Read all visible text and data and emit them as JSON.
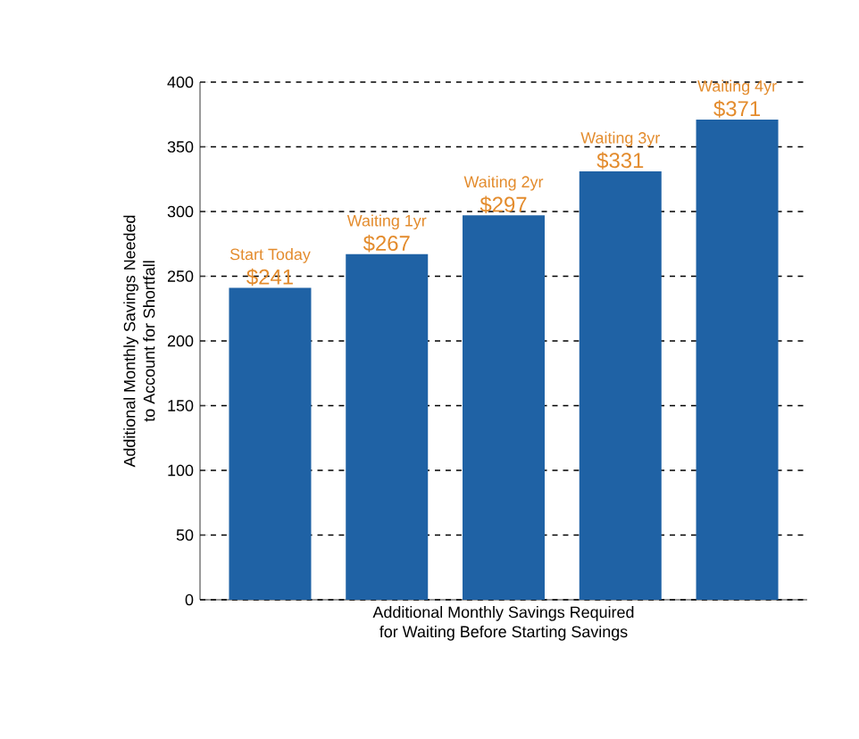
{
  "chart_data": {
    "type": "bar",
    "xlabel": "Additional Monthly Savings Required\nfor Waiting Before Starting Savings",
    "ylabel": "Additional Monthly Savings Needed\nto Account for Shortfall",
    "categories": [
      "Start Today",
      "Waiting 1yr",
      "Waiting 2yr",
      "Waiting 3yr",
      "Waiting 4yr"
    ],
    "values": [
      241,
      267,
      297,
      331,
      371
    ],
    "value_labels": [
      "$241",
      "$267",
      "$297",
      "$331",
      "$371"
    ],
    "color": "#1f62a5",
    "ylim": [
      0,
      400
    ],
    "yticks": [
      0,
      50,
      100,
      150,
      200,
      250,
      300,
      350,
      400
    ],
    "grid": "y"
  }
}
